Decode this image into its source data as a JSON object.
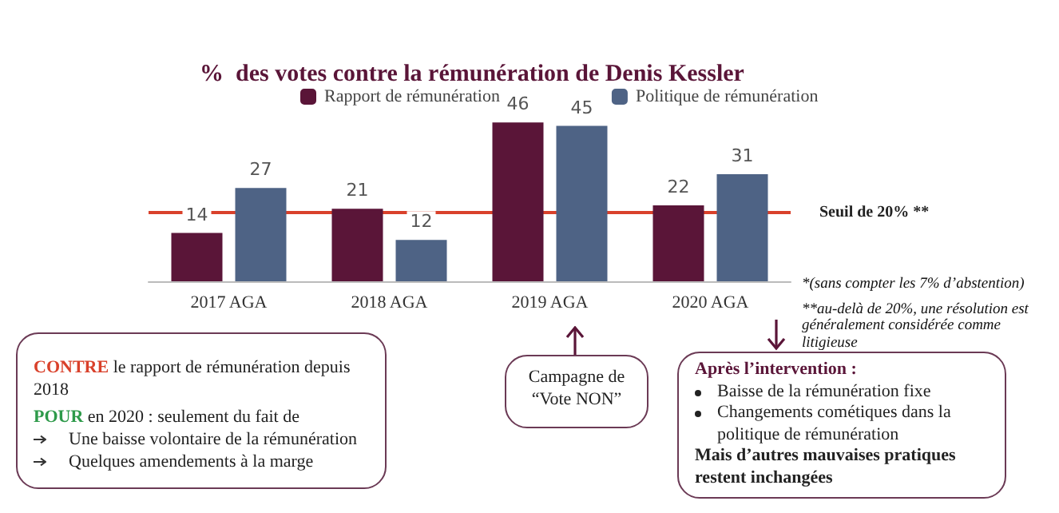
{
  "chart_data": {
    "type": "bar",
    "title": "%  des votes contre la rémunération de Denis Kessler",
    "categories": [
      "2017 AGA",
      "2018 AGA",
      "2019 AGA",
      "2020 AGA"
    ],
    "series": [
      {
        "name": "Rapport de rémunération",
        "color": "#5a1538",
        "values": [
          14,
          21,
          46,
          22
        ]
      },
      {
        "name": "Politique de rémunération",
        "color": "#4e6385",
        "values": [
          27,
          12,
          45,
          31
        ]
      }
    ],
    "tick_labels": "x",
    "grid": false,
    "legend": "top",
    "data_labels": true,
    "ref_lines": [
      {
        "axis": "y",
        "value": 20,
        "label": "Seuil de 20% **",
        "color": "#d9412b"
      }
    ],
    "annotations": [
      "*(sans compter les 7% d’abstention)",
      "**au-delà de 20%, une résolution est généralement considérée comme litigieuse",
      "CONTRE le rapport de rémunération depuis  2018",
      "POUR en 2020 : seulement du fait de",
      "Une baisse volontaire de la rémunération",
      "Quelques amendements à la marge",
      "Campagne de “Vote NON”",
      "Après l’intervention :",
      "Baisse de la rémunération fixe",
      "Changements cométiques dans la politique de rémunération",
      "Mais d’autres mauvaises pratiques restent inchangées"
    ]
  }
}
